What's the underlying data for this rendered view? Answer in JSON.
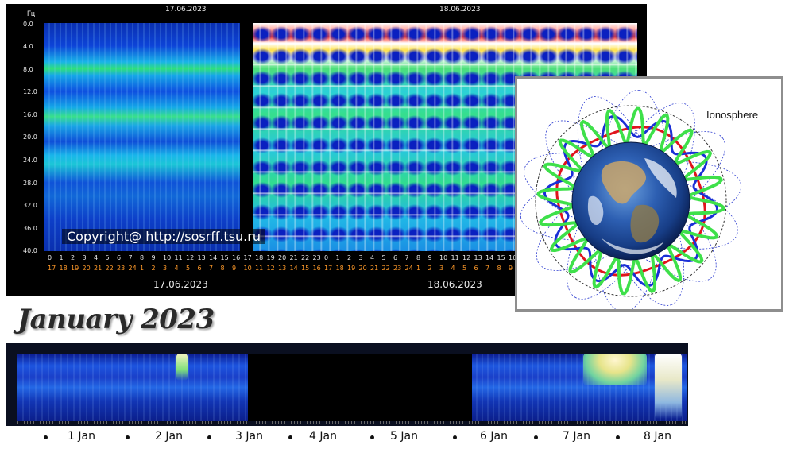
{
  "spectrogram": {
    "y_unit": "Гц",
    "y_ticks": [
      "0.0",
      "4.0",
      "8.0",
      "12.0",
      "16.0",
      "20.0",
      "24.0",
      "28.0",
      "32.0",
      "36.0",
      "40.0"
    ],
    "header_dates": [
      "17.06.2023",
      "18.06.2023"
    ],
    "copyright": "Copyright@ http://sosrff.tsu.ru",
    "x_hours_row1": [
      "0",
      "1",
      "2",
      "3",
      "4",
      "5",
      "6",
      "7",
      "8",
      "9",
      "10",
      "11",
      "12",
      "13",
      "14",
      "15",
      "16",
      "17",
      "18",
      "19",
      "20",
      "21",
      "22",
      "23",
      "0",
      "1",
      "2",
      "3",
      "4",
      "5",
      "6",
      "7",
      "8",
      "9",
      "10",
      "11",
      "12",
      "13",
      "14",
      "15",
      "16"
    ],
    "x_hours_row2": [
      "17",
      "18",
      "19",
      "20",
      "21",
      "22",
      "23",
      "24",
      "1",
      "2",
      "3",
      "4",
      "5",
      "6",
      "7",
      "8",
      "9",
      "10",
      "11",
      "12",
      "13",
      "14",
      "15",
      "16",
      "17",
      "18",
      "19",
      "20",
      "21",
      "22",
      "23",
      "24",
      "1",
      "2",
      "3",
      "4",
      "5",
      "6",
      "7",
      "8",
      "9"
    ],
    "bottom_dates": [
      "17.06.2023",
      "18.06.2023"
    ]
  },
  "ionosphere": {
    "label": "Ionosphere",
    "colors": {
      "red": "#e0141c",
      "blue": "#1a2fd6",
      "green": "#3ee04a",
      "ring": "#333333",
      "dotted": "#2b3bd0"
    }
  },
  "january": {
    "title": "January 2023",
    "days": [
      "1 Jan",
      "2 Jan",
      "3 Jan",
      "4 Jan",
      "5 Jan",
      "6 Jan",
      "7 Jan",
      "8 Jan"
    ]
  }
}
